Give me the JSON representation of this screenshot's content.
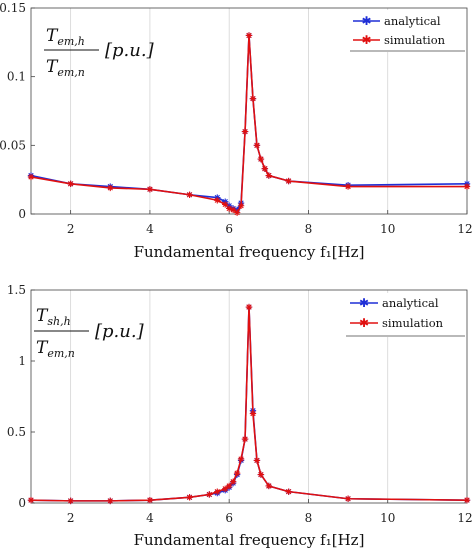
{
  "chart_data": [
    {
      "type": "line",
      "ylabel_numerator": "T",
      "ylabel_numerator_sub": "em,h",
      "ylabel_denominator": "T",
      "ylabel_denominator_sub": "em,n",
      "ylabel_unit": "[p.u.]",
      "xlabel": "Fundamental frequency f₁[Hz]",
      "xlim": [
        1,
        12
      ],
      "ylim": [
        0,
        0.15
      ],
      "xticks": [
        2,
        4,
        6,
        8,
        10,
        12
      ],
      "yticks": [
        0,
        0.05,
        0.1,
        0.15
      ],
      "ytick_labels": [
        "0",
        "0.05",
        "0.1",
        "0.15"
      ],
      "grid": "vertical",
      "legend_position": "top-right",
      "series": [
        {
          "name": "analytical",
          "color": "#1f2fd6",
          "marker": "star",
          "x": [
            1,
            2,
            3,
            4,
            5,
            5.7,
            5.9,
            6.0,
            6.1,
            6.2,
            6.3,
            6.4,
            6.5,
            6.6,
            6.7,
            6.8,
            6.9,
            7.0,
            7.5,
            9,
            12
          ],
          "y": [
            0.028,
            0.022,
            0.02,
            0.018,
            0.014,
            0.012,
            0.009,
            0.006,
            0.004,
            0.003,
            0.008,
            0.06,
            0.13,
            0.084,
            0.05,
            0.04,
            0.033,
            0.028,
            0.024,
            0.021,
            0.022
          ]
        },
        {
          "name": "simulation",
          "color": "#e01010",
          "marker": "star",
          "x": [
            1,
            2,
            3,
            4,
            5,
            5.7,
            5.9,
            6.0,
            6.1,
            6.2,
            6.3,
            6.4,
            6.5,
            6.6,
            6.7,
            6.8,
            6.9,
            7.0,
            7.5,
            9,
            12
          ],
          "y": [
            0.027,
            0.022,
            0.019,
            0.018,
            0.014,
            0.01,
            0.007,
            0.004,
            0.003,
            0.001,
            0.006,
            0.06,
            0.13,
            0.084,
            0.05,
            0.04,
            0.033,
            0.028,
            0.024,
            0.02,
            0.02
          ]
        }
      ]
    },
    {
      "type": "line",
      "ylabel_numerator": "T",
      "ylabel_numerator_sub": "sh,h",
      "ylabel_denominator": "T",
      "ylabel_denominator_sub": "em,n",
      "ylabel_unit": "[p.u.]",
      "xlabel": "Fundamental frequency f₁[Hz]",
      "xlim": [
        1,
        12
      ],
      "ylim": [
        0,
        1.5
      ],
      "xticks": [
        2,
        4,
        6,
        8,
        10,
        12
      ],
      "yticks": [
        0,
        0.5,
        1,
        1.5
      ],
      "ytick_labels": [
        "0",
        "0.5",
        "1",
        "1.5"
      ],
      "grid": "vertical",
      "legend_position": "top-right",
      "series": [
        {
          "name": "analytical",
          "color": "#1f2fd6",
          "marker": "star",
          "x": [
            1,
            2,
            3,
            4,
            5,
            5.5,
            5.7,
            5.9,
            6.0,
            6.1,
            6.2,
            6.3,
            6.4,
            6.5,
            6.6,
            6.7,
            6.8,
            7.0,
            7.5,
            9,
            12
          ],
          "y": [
            0.02,
            0.015,
            0.015,
            0.02,
            0.04,
            0.06,
            0.07,
            0.09,
            0.11,
            0.14,
            0.2,
            0.3,
            0.45,
            1.38,
            0.65,
            0.3,
            0.2,
            0.12,
            0.08,
            0.03,
            0.02
          ]
        },
        {
          "name": "simulation",
          "color": "#e01010",
          "marker": "star",
          "x": [
            1,
            2,
            3,
            4,
            5,
            5.5,
            5.7,
            5.9,
            6.0,
            6.1,
            6.2,
            6.3,
            6.4,
            6.5,
            6.6,
            6.7,
            6.8,
            7.0,
            7.5,
            9,
            12
          ],
          "y": [
            0.02,
            0.015,
            0.015,
            0.02,
            0.04,
            0.06,
            0.08,
            0.1,
            0.12,
            0.15,
            0.21,
            0.31,
            0.45,
            1.38,
            0.63,
            0.3,
            0.2,
            0.12,
            0.08,
            0.03,
            0.02
          ]
        }
      ]
    }
  ]
}
